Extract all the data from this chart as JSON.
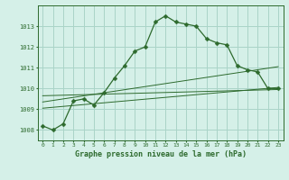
{
  "hours": [
    0,
    1,
    2,
    3,
    4,
    5,
    6,
    7,
    8,
    9,
    10,
    11,
    12,
    13,
    14,
    15,
    16,
    17,
    18,
    19,
    20,
    21,
    22,
    23
  ],
  "pressure": [
    1008.2,
    1008.0,
    1008.3,
    1009.4,
    1009.5,
    1009.2,
    1009.8,
    1010.5,
    1011.1,
    1011.8,
    1012.0,
    1013.2,
    1013.5,
    1013.2,
    1013.1,
    1013.0,
    1012.4,
    1012.2,
    1012.1,
    1011.1,
    1010.9,
    1010.8,
    1010.0,
    1010.0
  ],
  "trend_lines": [
    {
      "x0": 0,
      "y0": 1009.05,
      "x1": 23,
      "y1": 1010.05
    },
    {
      "x0": 0,
      "y0": 1009.35,
      "x1": 23,
      "y1": 1011.05
    },
    {
      "x0": 0,
      "y0": 1009.65,
      "x1": 23,
      "y1": 1009.95
    }
  ],
  "line_color": "#2d6a2d",
  "bg_color": "#d5f0e8",
  "grid_color": "#aad4c8",
  "tick_label_color": "#2d6a2d",
  "xlabel": "Graphe pression niveau de la mer (hPa)",
  "ylim": [
    1007.5,
    1014.0
  ],
  "xlim": [
    -0.5,
    23.5
  ],
  "yticks": [
    1008,
    1009,
    1010,
    1011,
    1012,
    1013
  ],
  "xticks": [
    0,
    1,
    2,
    3,
    4,
    5,
    6,
    7,
    8,
    9,
    10,
    11,
    12,
    13,
    14,
    15,
    16,
    17,
    18,
    19,
    20,
    21,
    22,
    23
  ],
  "xtick_fontsize": 4.5,
  "ytick_fontsize": 5.0,
  "xlabel_fontsize": 6.0
}
